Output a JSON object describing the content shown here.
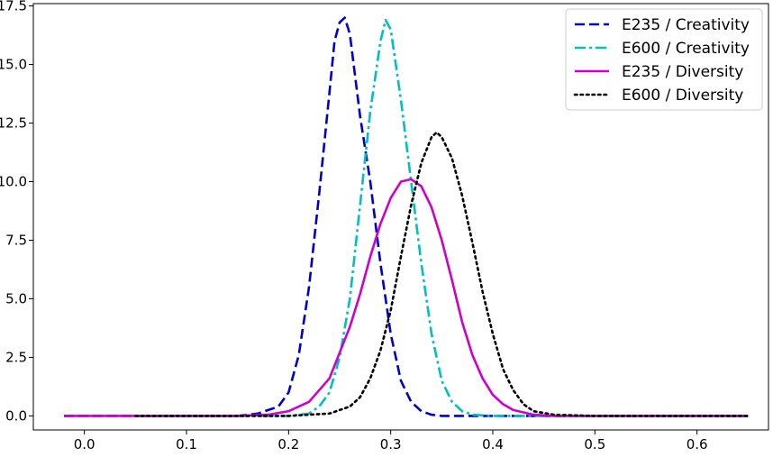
{
  "chart_data": {
    "type": "line",
    "title": "",
    "xlabel": "",
    "ylabel": "",
    "xlim": [
      -0.05,
      0.67
    ],
    "ylim": [
      -0.6,
      17.6
    ],
    "x_ticks": [
      0.0,
      0.1,
      0.2,
      0.3,
      0.4,
      0.5,
      0.6
    ],
    "x_tick_labels": [
      "0.0",
      "0.1",
      "0.2",
      "0.3",
      "0.4",
      "0.5",
      "0.6"
    ],
    "y_ticks": [
      0.0,
      2.5,
      5.0,
      7.5,
      10.0,
      12.5,
      15.0,
      17.5
    ],
    "y_tick_labels": [
      "0.0",
      "2.5",
      "5.0",
      "7.5",
      "10.0",
      "12.5",
      "15.0",
      "17.5"
    ],
    "grid": false,
    "legend_position": "top-right",
    "series": [
      {
        "name": "E235 / Creativity",
        "color": "#0000cc",
        "style": "dashed",
        "x": [
          -0.02,
          0.15,
          0.17,
          0.19,
          0.2,
          0.21,
          0.22,
          0.23,
          0.24,
          0.245,
          0.25,
          0.255,
          0.26,
          0.27,
          0.28,
          0.29,
          0.3,
          0.31,
          0.32,
          0.33,
          0.34,
          0.35,
          0.36,
          0.38,
          0.4,
          0.65
        ],
        "y": [
          0,
          0.0,
          0.1,
          0.4,
          1.0,
          2.6,
          5.5,
          9.5,
          13.8,
          16.0,
          16.8,
          17.0,
          16.3,
          12.8,
          10.0,
          6.5,
          3.5,
          1.5,
          0.6,
          0.2,
          0.05,
          0.0,
          0.0,
          0.0,
          0.0,
          0.0
        ]
      },
      {
        "name": "E600 / Creativity",
        "color": "#00bfbf",
        "style": "dashdot",
        "x": [
          0.05,
          0.2,
          0.22,
          0.23,
          0.24,
          0.25,
          0.26,
          0.27,
          0.28,
          0.29,
          0.295,
          0.3,
          0.31,
          0.32,
          0.33,
          0.34,
          0.35,
          0.36,
          0.37,
          0.38,
          0.4,
          0.65
        ],
        "y": [
          0.0,
          0.0,
          0.1,
          0.4,
          1.0,
          2.5,
          5.0,
          9.0,
          13.0,
          16.0,
          16.9,
          16.5,
          13.5,
          10.0,
          6.5,
          3.5,
          1.5,
          0.6,
          0.2,
          0.05,
          0.0,
          0.0
        ]
      },
      {
        "name": "E235 / Diversity",
        "color": "#cc00cc",
        "style": "solid",
        "x": [
          -0.02,
          0.15,
          0.18,
          0.2,
          0.22,
          0.24,
          0.26,
          0.27,
          0.28,
          0.29,
          0.3,
          0.31,
          0.32,
          0.33,
          0.34,
          0.35,
          0.36,
          0.37,
          0.38,
          0.39,
          0.4,
          0.41,
          0.42,
          0.44,
          0.46,
          0.5,
          0.65
        ],
        "y": [
          0,
          0.0,
          0.05,
          0.2,
          0.6,
          1.6,
          3.8,
          5.2,
          6.8,
          8.2,
          9.3,
          10.0,
          10.1,
          9.8,
          8.9,
          7.5,
          5.8,
          4.0,
          2.6,
          1.6,
          0.9,
          0.5,
          0.25,
          0.05,
          0.0,
          0.0,
          0.0
        ]
      },
      {
        "name": "E600 / Diversity",
        "color": "#000000",
        "style": "dotted",
        "x": [
          0.05,
          0.2,
          0.24,
          0.26,
          0.27,
          0.28,
          0.29,
          0.3,
          0.31,
          0.32,
          0.33,
          0.34,
          0.345,
          0.35,
          0.36,
          0.37,
          0.38,
          0.39,
          0.4,
          0.41,
          0.42,
          0.43,
          0.44,
          0.46,
          0.5,
          0.65
        ],
        "y": [
          0.0,
          0.0,
          0.1,
          0.4,
          0.8,
          1.6,
          2.8,
          4.5,
          6.8,
          9.0,
          10.8,
          11.9,
          12.1,
          11.9,
          11.0,
          9.4,
          7.4,
          5.3,
          3.5,
          2.0,
          1.1,
          0.5,
          0.2,
          0.05,
          0.0,
          0.0
        ]
      }
    ]
  }
}
